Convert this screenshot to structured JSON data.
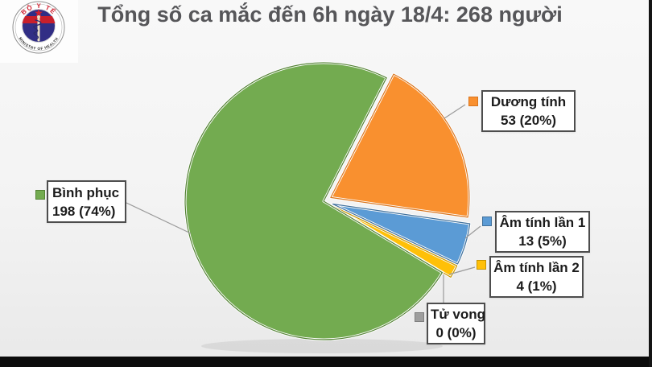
{
  "title": {
    "text": "Tổng số ca mắc đến 6h ngày 18/4: 268 người"
  },
  "logo": {
    "arc_top": "BỘ Y TẾ",
    "arc_bottom": "MINISTRY OF HEALTH"
  },
  "chart_data": {
    "type": "pie",
    "title": "Tổng số ca mắc đến 6h ngày 18/4: 268 người",
    "total": 268,
    "start_angle_deg": 63,
    "direction": "clockwise",
    "legend_position": "callout-boxes",
    "slices": [
      {
        "id": "duong-tinh",
        "label": "Dương tính",
        "value": 53,
        "percent": 20,
        "value_text": "53 (20%)",
        "color": "#F9902F",
        "border": "#D9751E",
        "explode": 10
      },
      {
        "id": "am-tinh-lan-1",
        "label": "Âm tính lần 1",
        "value": 13,
        "percent": 5,
        "value_text": "13 (5%)",
        "color": "#5B9BD5",
        "border": "#41719C",
        "explode": 12
      },
      {
        "id": "am-tinh-lan-2",
        "label": "Âm tính lần 2",
        "value": 4,
        "percent": 1,
        "value_text": "4 (1%)",
        "color": "#FFC008",
        "border": "#C69500",
        "explode": 12
      },
      {
        "id": "tu-vong",
        "label": "Tử vong",
        "value": 0,
        "percent": 0,
        "value_text": "0 (0%)",
        "color": "#9E9E9E",
        "border": "#7F7F7F",
        "explode": 0
      },
      {
        "id": "binh-phuc",
        "label": "Bình phục",
        "value": 198,
        "percent": 74,
        "value_text": "198 (74%)",
        "color": "#73AB50",
        "border": "#548235",
        "explode": 0
      }
    ]
  }
}
